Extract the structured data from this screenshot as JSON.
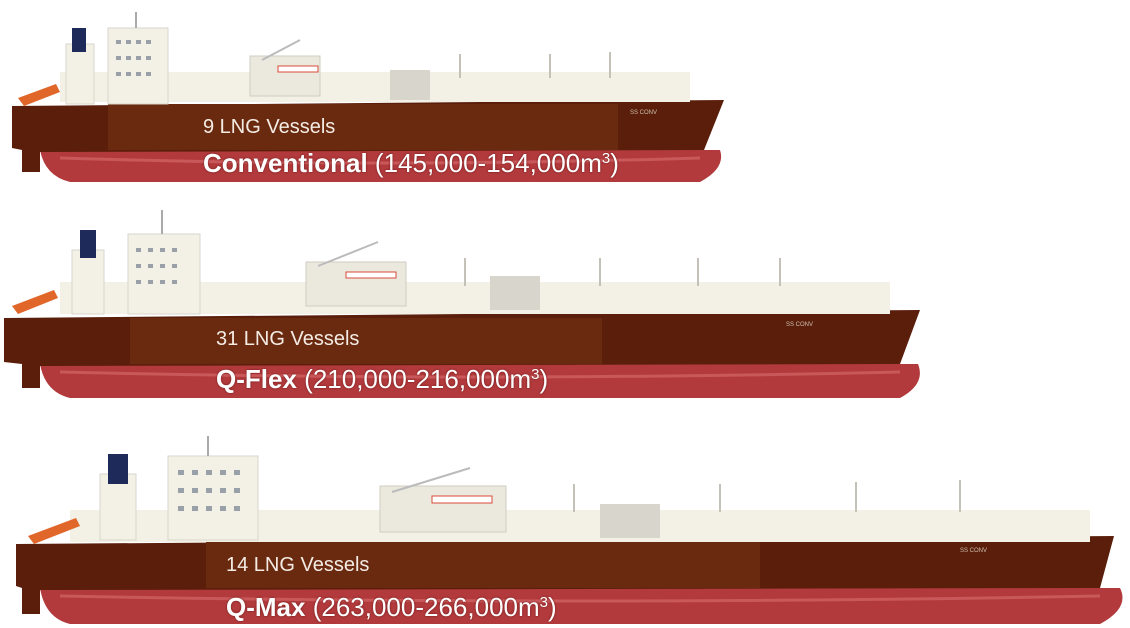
{
  "ships": [
    {
      "count_label": "9 LNG Vessels",
      "class_name": "Conventional",
      "capacity": "(145,000-154,000m",
      "unit_sup": "3",
      "capacity_close": ")",
      "hull_marking": "SS CONV"
    },
    {
      "count_label": "31 LNG Vessels",
      "class_name": "Q-Flex",
      "capacity": "(210,000-216,000m",
      "unit_sup": "3",
      "capacity_close": ")",
      "hull_marking": "SS CONV"
    },
    {
      "count_label": "14 LNG Vessels",
      "class_name": "Q-Max",
      "capacity": "(263,000-266,000m",
      "unit_sup": "3",
      "capacity_close": ")",
      "hull_marking": "SS CONV"
    }
  ],
  "colors": {
    "hull_upper": "#5a1e0a",
    "hull_panel": "#6a2a10",
    "hull_lower": "#b23a3c",
    "superstructure": "#f3f1e6",
    "deck_detail": "#d8d6cc",
    "funnel": "#1e2a5a",
    "lifeboat": "#e0662a"
  }
}
